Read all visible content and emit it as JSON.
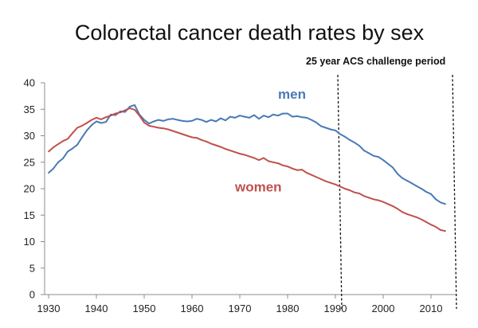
{
  "chart_data": {
    "type": "line",
    "title": "Colorectal cancer death rates by sex",
    "xlabel": "",
    "ylabel": "",
    "xlim": [
      1930,
      2014
    ],
    "ylim": [
      0,
      40
    ],
    "x_ticks": [
      1930,
      1940,
      1950,
      1960,
      1970,
      1980,
      1990,
      2000,
      2010
    ],
    "y_ticks": [
      0,
      5,
      10,
      15,
      20,
      25,
      30,
      35,
      40
    ],
    "grid": false,
    "legend": "inline labels",
    "annotation": {
      "text": "25 year ACS challenge period",
      "start_year": 1991,
      "end_year": 2015
    },
    "series": [
      {
        "name": "men",
        "color": "#4a7ab5",
        "label_position": [
          1978,
          37
        ],
        "x": [
          1930,
          1931,
          1932,
          1933,
          1934,
          1935,
          1936,
          1937,
          1938,
          1939,
          1940,
          1941,
          1942,
          1943,
          1944,
          1945,
          1946,
          1947,
          1948,
          1949,
          1950,
          1951,
          1952,
          1953,
          1954,
          1955,
          1956,
          1957,
          1958,
          1959,
          1960,
          1961,
          1962,
          1963,
          1964,
          1965,
          1966,
          1967,
          1968,
          1969,
          1970,
          1971,
          1972,
          1973,
          1974,
          1975,
          1976,
          1977,
          1978,
          1979,
          1980,
          1981,
          1982,
          1983,
          1984,
          1985,
          1986,
          1987,
          1988,
          1989,
          1990,
          1991,
          1992,
          1993,
          1994,
          1995,
          1996,
          1997,
          1998,
          1999,
          2000,
          2001,
          2002,
          2003,
          2004,
          2005,
          2006,
          2007,
          2008,
          2009,
          2010,
          2011,
          2012,
          2013
        ],
        "values": [
          23,
          23.8,
          25,
          25.7,
          27,
          27.6,
          28.3,
          29.7,
          31,
          32,
          32.7,
          32.4,
          32.6,
          34,
          33.9,
          34.6,
          34.5,
          35.5,
          35.8,
          34,
          33,
          32.3,
          32.7,
          33,
          32.8,
          33.1,
          33.2,
          33,
          32.8,
          32.7,
          32.8,
          33.2,
          33,
          32.6,
          33,
          32.7,
          33.3,
          32.9,
          33.6,
          33.4,
          33.8,
          33.6,
          33.4,
          33.9,
          33.2,
          33.8,
          33.5,
          34,
          33.8,
          34.2,
          34.2,
          33.6,
          33.7,
          33.5,
          33.4,
          33,
          32.5,
          31.8,
          31.5,
          31.2,
          31,
          30.3,
          29.8,
          29.2,
          28.7,
          28.1,
          27.2,
          26.7,
          26.2,
          26,
          25.4,
          24.7,
          24,
          22.8,
          22,
          21.5,
          21,
          20.5,
          20,
          19.4,
          19,
          18,
          17.4,
          17.1
        ]
      },
      {
        "name": "women",
        "color": "#c0504d",
        "label_position": [
          1969,
          19.5
        ],
        "x": [
          1930,
          1931,
          1932,
          1933,
          1934,
          1935,
          1936,
          1937,
          1938,
          1939,
          1940,
          1941,
          1942,
          1943,
          1944,
          1945,
          1946,
          1947,
          1948,
          1949,
          1950,
          1951,
          1952,
          1953,
          1954,
          1955,
          1956,
          1957,
          1958,
          1959,
          1960,
          1961,
          1962,
          1963,
          1964,
          1965,
          1966,
          1967,
          1968,
          1969,
          1970,
          1971,
          1972,
          1973,
          1974,
          1975,
          1976,
          1977,
          1978,
          1979,
          1980,
          1981,
          1982,
          1983,
          1984,
          1985,
          1986,
          1987,
          1988,
          1989,
          1990,
          1991,
          1992,
          1993,
          1994,
          1995,
          1996,
          1997,
          1998,
          1999,
          2000,
          2001,
          2002,
          2003,
          2004,
          2005,
          2006,
          2007,
          2008,
          2009,
          2010,
          2011,
          2012,
          2013
        ],
        "values": [
          27,
          27.8,
          28.4,
          29,
          29.4,
          30.5,
          31.5,
          31.9,
          32.4,
          33,
          33.4,
          33.1,
          33.5,
          33.8,
          34.2,
          34.4,
          34.8,
          35.2,
          34.9,
          33.8,
          32.5,
          31.9,
          31.7,
          31.5,
          31.4,
          31.2,
          30.9,
          30.6,
          30.3,
          30,
          29.7,
          29.6,
          29.2,
          28.9,
          28.5,
          28.2,
          27.9,
          27.5,
          27.2,
          26.9,
          26.6,
          26.4,
          26.1,
          25.8,
          25.4,
          25.8,
          25.2,
          25,
          24.8,
          24.4,
          24.2,
          23.8,
          23.5,
          23.6,
          23,
          22.6,
          22.2,
          21.8,
          21.4,
          21.1,
          20.8,
          20.4,
          20,
          19.7,
          19.3,
          19.1,
          18.6,
          18.3,
          18,
          17.8,
          17.5,
          17.1,
          16.7,
          16.2,
          15.6,
          15.2,
          14.9,
          14.6,
          14.2,
          13.7,
          13.2,
          12.8,
          12.2,
          12
        ]
      }
    ]
  }
}
